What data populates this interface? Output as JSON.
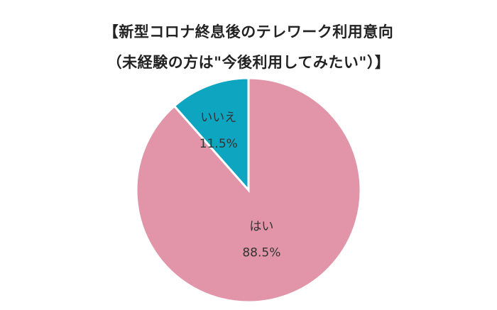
{
  "chart_data": {
    "type": "pie",
    "title_line1": "【新型コロナ終息後のテレワーク利用意向",
    "title_line2": "（未経験の方は\"今後利用してみたい\"）】",
    "slices": [
      {
        "name": "はい",
        "value": 88.5,
        "value_label": "88.5%",
        "color": "#e295a8"
      },
      {
        "name": "いいえ",
        "value": 11.5,
        "value_label": "11.5%",
        "color": "#0da5c0"
      }
    ]
  }
}
